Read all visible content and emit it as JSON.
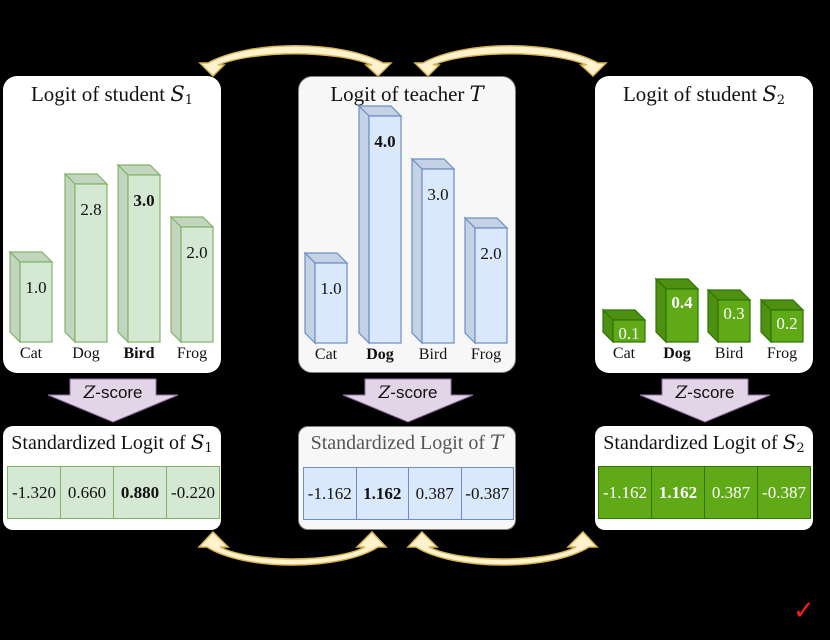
{
  "panels": {
    "student1": {
      "title_prefix": "Logit of student ",
      "title_symbol": "S",
      "title_sub": "1",
      "bars": [
        {
          "label": "Cat",
          "value": "1.0",
          "bold": false
        },
        {
          "label": "Dog",
          "value": "2.8",
          "bold": false
        },
        {
          "label": "Bird",
          "value": "3.0",
          "bold": true
        },
        {
          "label": "Frog",
          "value": "2.0",
          "bold": false
        }
      ],
      "standardized_title_prefix": "Standardized Logit of ",
      "standardized_symbol": "S",
      "standardized_sub": "1",
      "standardized_values": [
        "-1.320",
        "0.660",
        "0.880",
        "-0.220"
      ],
      "standardized_bold_index": 2
    },
    "teacher": {
      "title_prefix": "Logit of teacher ",
      "title_symbol": "T",
      "bars": [
        {
          "label": "Cat",
          "value": "1.0",
          "bold": false
        },
        {
          "label": "Dog",
          "value": "4.0",
          "bold": true
        },
        {
          "label": "Bird",
          "value": "3.0",
          "bold": false
        },
        {
          "label": "Frog",
          "value": "2.0",
          "bold": false
        }
      ],
      "standardized_title_prefix": "Standardized Logit of ",
      "standardized_symbol": "T",
      "standardized_values": [
        "-1.162",
        "1.162",
        "0.387",
        "-0.387"
      ],
      "standardized_bold_index": 1
    },
    "student2": {
      "title_prefix": "Logit of student ",
      "title_symbol": "S",
      "title_sub": "2",
      "bars": [
        {
          "label": "Cat",
          "value": "0.1",
          "bold": false
        },
        {
          "label": "Dog",
          "value": "0.4",
          "bold": true
        },
        {
          "label": "Bird",
          "value": "0.3",
          "bold": false
        },
        {
          "label": "Frog",
          "value": "0.2",
          "bold": false
        }
      ],
      "standardized_title_prefix": "Standardized Logit of ",
      "standardized_symbol": "S",
      "standardized_sub": "2",
      "standardized_values": [
        "-1.162",
        "1.162",
        "0.387",
        "-0.387"
      ],
      "standardized_bold_index": 1
    }
  },
  "zscore": {
    "symbol": "Z",
    "label": "-score"
  },
  "colors": {
    "s1_front": "#d5e8d4",
    "s1_side": "#c1d5bf",
    "s1_border": "#82b366",
    "t_front": "#dae8fc",
    "t_side": "#c5d2e6",
    "t_border": "#6c8ebf",
    "s2_front": "#60a917",
    "s2_side": "#4f8f12",
    "s2_border": "#2d7600",
    "arrow_fill": "#fff2cc",
    "arrow_stroke": "#d6b656",
    "zscore_fill": "#e1d5e7",
    "zscore_stroke": "#9673a6",
    "check": "#ff1a1a"
  },
  "checkmark": "✓"
}
